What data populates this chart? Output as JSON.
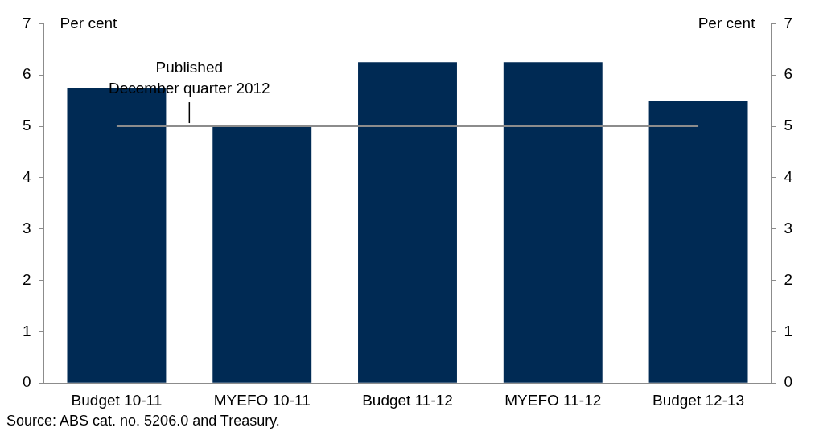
{
  "chart_data": {
    "type": "bar",
    "categories": [
      "Budget 10-11",
      "MYEFO 10-11",
      "Budget 11-12",
      "MYEFO 11-12",
      "Budget 12-13"
    ],
    "series": [
      {
        "color": "#002a54",
        "values": [
          5.75,
          5.0,
          6.25,
          6.25,
          5.5
        ]
      }
    ],
    "ylabel": "Per cent",
    "y2label": "Per cent",
    "ylim": [
      0,
      7
    ],
    "yticks": [
      0,
      1,
      2,
      3,
      4,
      5,
      6,
      7
    ],
    "y2lim": [
      0,
      7
    ],
    "y2ticks": [
      0,
      1,
      2,
      3,
      4,
      5,
      6,
      7
    ],
    "ref_lines": [
      {
        "axis": "y",
        "value": 5,
        "label": "Published\nDecember quarter 2012",
        "color": "#8c8c8c"
      }
    ],
    "grid": false,
    "legend": false,
    "annotations": [
      "Source: ABS cat. no. 5206.0 and Treasury."
    ]
  }
}
